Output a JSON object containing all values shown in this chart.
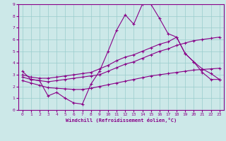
{
  "xlabel": "Windchill (Refroidissement éolien,°C)",
  "background_color": "#cce8e8",
  "line_color": "#880088",
  "grid_color": "#99cccc",
  "xlim": [
    -0.5,
    23.5
  ],
  "ylim": [
    0,
    9
  ],
  "xticks": [
    0,
    1,
    2,
    3,
    4,
    5,
    6,
    7,
    8,
    9,
    10,
    11,
    12,
    13,
    14,
    15,
    16,
    17,
    18,
    19,
    20,
    21,
    22,
    23
  ],
  "yticks": [
    0,
    1,
    2,
    3,
    4,
    5,
    6,
    7,
    8,
    9
  ],
  "line1_x": [
    0,
    1,
    2,
    3,
    4,
    5,
    6,
    7,
    8,
    9,
    10,
    11,
    12,
    13,
    14,
    15,
    16,
    17,
    18,
    19,
    20,
    21,
    22,
    23
  ],
  "line1_y": [
    3.3,
    2.6,
    2.5,
    1.2,
    1.5,
    1.0,
    0.6,
    0.5,
    2.2,
    3.3,
    5.0,
    6.8,
    8.1,
    7.3,
    9.0,
    9.0,
    7.8,
    6.5,
    6.2,
    4.8,
    4.1,
    3.2,
    2.6,
    2.6
  ],
  "line2_x": [
    0,
    1,
    2,
    3,
    4,
    5,
    6,
    7,
    8,
    9,
    10,
    11,
    12,
    13,
    14,
    15,
    16,
    17,
    18,
    19,
    20,
    21,
    22,
    23
  ],
  "line2_y": [
    3.0,
    2.8,
    2.7,
    2.7,
    2.8,
    2.9,
    3.0,
    3.1,
    3.2,
    3.5,
    3.8,
    4.2,
    4.5,
    4.7,
    5.0,
    5.3,
    5.6,
    5.8,
    6.2,
    4.8,
    4.1,
    3.5,
    3.1,
    2.6
  ],
  "line3_x": [
    0,
    1,
    2,
    3,
    4,
    5,
    6,
    7,
    8,
    9,
    10,
    11,
    12,
    13,
    14,
    15,
    16,
    17,
    18,
    19,
    20,
    21,
    22,
    23
  ],
  "line3_y": [
    2.8,
    2.6,
    2.5,
    2.4,
    2.5,
    2.6,
    2.7,
    2.8,
    2.9,
    3.0,
    3.3,
    3.6,
    3.9,
    4.1,
    4.4,
    4.7,
    5.0,
    5.2,
    5.5,
    5.7,
    5.9,
    6.0,
    6.1,
    6.2
  ],
  "line4_x": [
    0,
    1,
    2,
    3,
    4,
    5,
    6,
    7,
    8,
    9,
    10,
    11,
    12,
    13,
    14,
    15,
    16,
    17,
    18,
    19,
    20,
    21,
    22,
    23
  ],
  "line4_y": [
    2.5,
    2.3,
    2.1,
    1.9,
    1.85,
    1.8,
    1.75,
    1.75,
    1.85,
    2.0,
    2.15,
    2.3,
    2.45,
    2.6,
    2.75,
    2.9,
    3.0,
    3.1,
    3.2,
    3.3,
    3.4,
    3.45,
    3.5,
    3.55
  ]
}
